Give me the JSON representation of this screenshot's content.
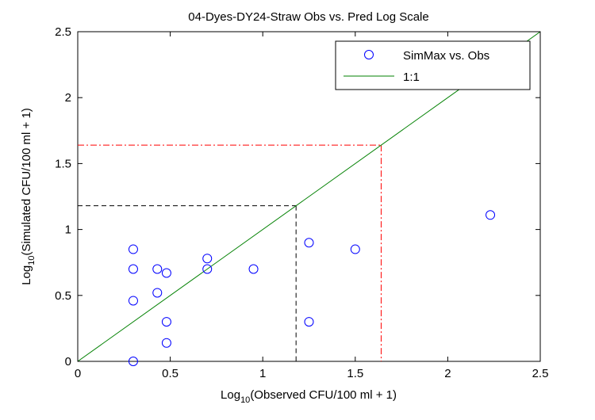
{
  "chart_data": {
    "type": "scatter",
    "title": "04-Dyes-DY24-Straw Obs vs. Pred Log Scale",
    "xlabel": {
      "prefix": "Log",
      "sub": "10",
      "suffix": "(Observed CFU/100 ml + 1)"
    },
    "ylabel": {
      "prefix": "Log",
      "sub": "10",
      "suffix": "(Simulated CFU/100 ml + 1)"
    },
    "xlim": [
      0,
      2.5
    ],
    "ylim": [
      0,
      2.5
    ],
    "xticks": [
      "0",
      "0.5",
      "1",
      "1.5",
      "2",
      "2.5"
    ],
    "yticks": [
      "0",
      "0.5",
      "1",
      "1.5",
      "2",
      "2.5"
    ],
    "grid": false,
    "legend_position": "top-right",
    "series": [
      {
        "name": "SimMax vs. Obs",
        "marker": "circle",
        "color": "#0000ff",
        "points": [
          [
            0.3,
            0.85
          ],
          [
            0.3,
            0.7
          ],
          [
            0.3,
            0.46
          ],
          [
            0.3,
            0
          ],
          [
            0.43,
            0.7
          ],
          [
            0.43,
            0.52
          ],
          [
            0.48,
            0.67
          ],
          [
            0.48,
            0.3
          ],
          [
            0.48,
            0.14
          ],
          [
            0.7,
            0.78
          ],
          [
            0.7,
            0.7
          ],
          [
            0.95,
            0.7
          ],
          [
            1.25,
            0.9
          ],
          [
            1.25,
            0.3
          ],
          [
            1.5,
            0.85
          ],
          [
            2.23,
            1.11
          ]
        ]
      },
      {
        "name": "1:1",
        "line": true,
        "color": "#008000",
        "points": [
          [
            0,
            0
          ],
          [
            2.5,
            2.5
          ]
        ]
      }
    ],
    "reference_lines": [
      {
        "value": 1.18,
        "color": "#000000",
        "style": "dashed"
      },
      {
        "value": 1.64,
        "color": "#ff0000",
        "style": "dashdot"
      }
    ]
  }
}
